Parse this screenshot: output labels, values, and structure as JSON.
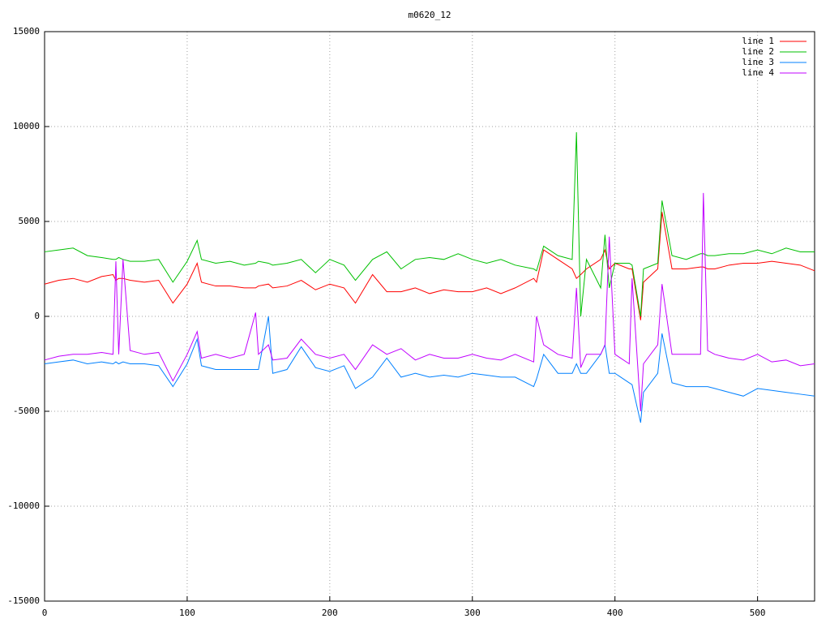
{
  "chart_data": {
    "type": "line",
    "title": "m0620_12",
    "x": [
      0,
      10,
      20,
      30,
      40,
      48,
      50,
      52,
      55,
      60,
      70,
      80,
      90,
      100,
      107,
      110,
      120,
      130,
      140,
      148,
      150,
      157,
      160,
      170,
      180,
      190,
      200,
      210,
      218,
      230,
      240,
      250,
      260,
      270,
      280,
      290,
      300,
      310,
      320,
      330,
      343,
      345,
      350,
      360,
      370,
      373,
      376,
      380,
      390,
      393,
      396,
      400,
      410,
      412,
      418,
      420,
      430,
      433,
      440,
      450,
      460,
      462,
      465,
      470,
      480,
      490,
      500,
      510,
      520,
      530,
      540
    ],
    "series": [
      {
        "name": "line 1",
        "color": "#ff0000",
        "values": [
          1700,
          1900,
          2000,
          1800,
          2100,
          2200,
          1900,
          2000,
          2000,
          1900,
          1800,
          1900,
          700,
          1700,
          2800,
          1800,
          1600,
          1600,
          1500,
          1500,
          1600,
          1700,
          1500,
          1600,
          1900,
          1400,
          1700,
          1500,
          700,
          2200,
          1300,
          1300,
          1500,
          1200,
          1400,
          1300,
          1300,
          1500,
          1200,
          1500,
          2000,
          1800,
          3500,
          3000,
          2500,
          2000,
          2200,
          2500,
          3000,
          3500,
          2500,
          2800,
          2500,
          2500,
          -200,
          1800,
          2500,
          5500,
          2500,
          2500,
          2600,
          2600,
          2500,
          2500,
          2700,
          2800,
          2800,
          2900,
          2800,
          2700,
          2400
        ]
      },
      {
        "name": "line 2",
        "color": "#00c000",
        "values": [
          3400,
          3500,
          3600,
          3200,
          3100,
          3000,
          3000,
          3100,
          3000,
          2900,
          2900,
          3000,
          1800,
          2900,
          4000,
          3000,
          2800,
          2900,
          2700,
          2800,
          2900,
          2800,
          2700,
          2800,
          3000,
          2300,
          3000,
          2700,
          1900,
          3000,
          3400,
          2500,
          3000,
          3100,
          3000,
          3300,
          3000,
          2800,
          3000,
          2700,
          2500,
          2400,
          3700,
          3200,
          3000,
          9700,
          0,
          3000,
          1500,
          4300,
          1500,
          2800,
          2800,
          2700,
          0,
          2500,
          2800,
          6100,
          3200,
          3000,
          3300,
          3300,
          3200,
          3200,
          3300,
          3300,
          3500,
          3300,
          3600,
          3400,
          3400
        ]
      },
      {
        "name": "line 3",
        "color": "#0080ff",
        "values": [
          -2500,
          -2400,
          -2300,
          -2500,
          -2400,
          -2500,
          -2400,
          -2500,
          -2400,
          -2500,
          -2500,
          -2600,
          -3700,
          -2500,
          -1200,
          -2600,
          -2800,
          -2800,
          -2800,
          -2800,
          -2800,
          0,
          -3000,
          -2800,
          -1600,
          -2700,
          -2900,
          -2600,
          -3800,
          -3200,
          -2200,
          -3200,
          -3000,
          -3200,
          -3100,
          -3200,
          -3000,
          -3100,
          -3200,
          -3200,
          -3700,
          -3300,
          -2000,
          -3000,
          -3000,
          -2500,
          -3000,
          -3000,
          -2000,
          -1500,
          -3000,
          -3000,
          -3500,
          -3600,
          -5600,
          -4000,
          -3000,
          -900,
          -3500,
          -3700,
          -3700,
          -3700,
          -3700,
          -3800,
          -4000,
          -4200,
          -3800,
          -3900,
          -4000,
          -4100,
          -4200
        ]
      },
      {
        "name": "line 4",
        "color": "#c000ff",
        "values": [
          -2300,
          -2100,
          -2000,
          -2000,
          -1900,
          -2000,
          2900,
          -2000,
          3000,
          -1800,
          -2000,
          -1900,
          -3400,
          -2000,
          -800,
          -2200,
          -2000,
          -2200,
          -2000,
          200,
          -2000,
          -1500,
          -2300,
          -2200,
          -1200,
          -2000,
          -2200,
          -2000,
          -2800,
          -1500,
          -2000,
          -1700,
          -2300,
          -2000,
          -2200,
          -2200,
          -2000,
          -2200,
          -2300,
          -2000,
          -2400,
          0,
          -1500,
          -2000,
          -2200,
          1500,
          -2700,
          -2000,
          -2000,
          -1500,
          4200,
          -2000,
          -2500,
          2000,
          -5000,
          -2500,
          -1500,
          1700,
          -2000,
          -2000,
          -2000,
          6500,
          -1800,
          -2000,
          -2200,
          -2300,
          -2000,
          -2400,
          -2300,
          -2600,
          -2500
        ]
      }
    ],
    "xlim": [
      0,
      540
    ],
    "xticks": [
      0,
      100,
      200,
      300,
      400,
      500
    ],
    "ylim": [
      -15000,
      15000
    ],
    "yticks": [
      -15000,
      -10000,
      -5000,
      0,
      5000,
      10000,
      15000
    ],
    "grid": true,
    "legend": "top-right"
  }
}
